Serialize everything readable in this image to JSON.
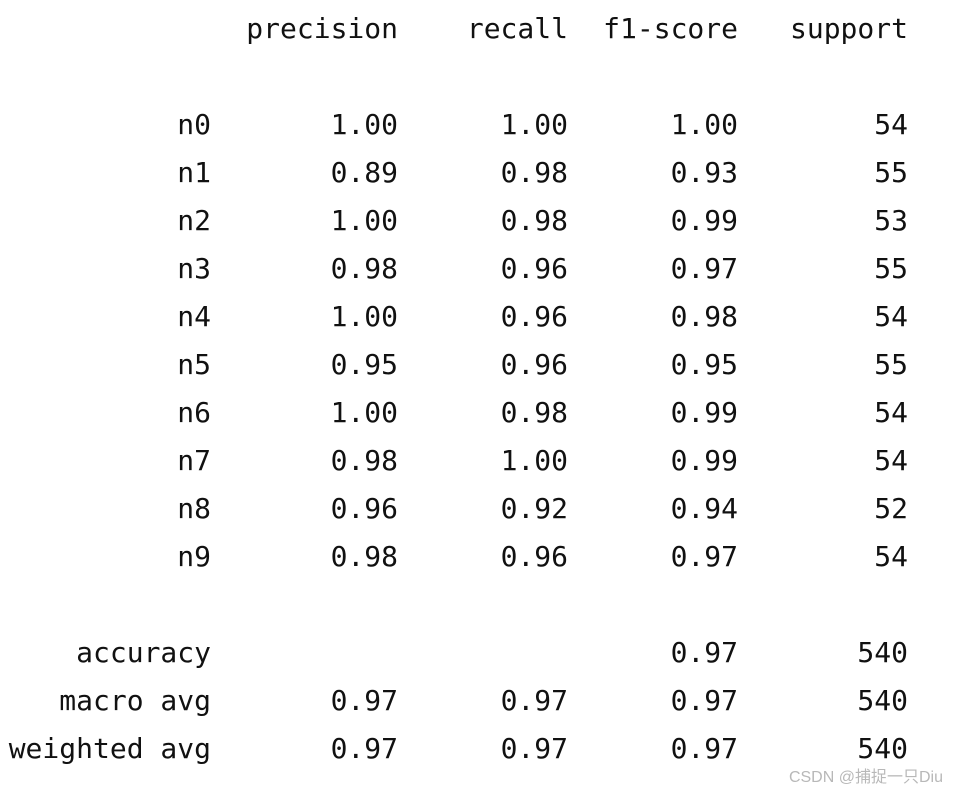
{
  "header": {
    "precision": "precision",
    "recall": "recall",
    "f1_score": "f1-score",
    "support": "support"
  },
  "classes": [
    {
      "label": "n0",
      "precision": "1.00",
      "recall": "1.00",
      "f1": "1.00",
      "support": "54"
    },
    {
      "label": "n1",
      "precision": "0.89",
      "recall": "0.98",
      "f1": "0.93",
      "support": "55"
    },
    {
      "label": "n2",
      "precision": "1.00",
      "recall": "0.98",
      "f1": "0.99",
      "support": "53"
    },
    {
      "label": "n3",
      "precision": "0.98",
      "recall": "0.96",
      "f1": "0.97",
      "support": "55"
    },
    {
      "label": "n4",
      "precision": "1.00",
      "recall": "0.96",
      "f1": "0.98",
      "support": "54"
    },
    {
      "label": "n5",
      "precision": "0.95",
      "recall": "0.96",
      "f1": "0.95",
      "support": "55"
    },
    {
      "label": "n6",
      "precision": "1.00",
      "recall": "0.98",
      "f1": "0.99",
      "support": "54"
    },
    {
      "label": "n7",
      "precision": "0.98",
      "recall": "1.00",
      "f1": "0.99",
      "support": "54"
    },
    {
      "label": "n8",
      "precision": "0.96",
      "recall": "0.92",
      "f1": "0.94",
      "support": "52"
    },
    {
      "label": "n9",
      "precision": "0.98",
      "recall": "0.96",
      "f1": "0.97",
      "support": "54"
    }
  ],
  "summary": {
    "accuracy": {
      "label": "accuracy",
      "f1": "0.97",
      "support": "540"
    },
    "macro_avg": {
      "label": "macro avg",
      "precision": "0.97",
      "recall": "0.97",
      "f1": "0.97",
      "support": "540"
    },
    "weighted_avg": {
      "label": "weighted avg",
      "precision": "0.97",
      "recall": "0.97",
      "f1": "0.97",
      "support": "540"
    }
  },
  "watermark": "CSDN @捕捉一只Diu"
}
